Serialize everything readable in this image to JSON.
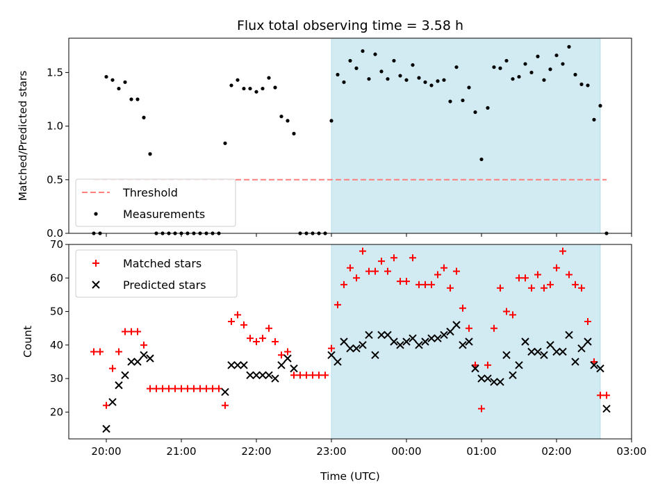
{
  "chart_data": {
    "type": "scatter",
    "title": "Flux total observing time = 3.58 h",
    "xlabel": "Time (UTC)",
    "x_ticks": [
      "20:00",
      "21:00",
      "22:00",
      "23:00",
      "00:00",
      "01:00",
      "02:00",
      "03:00"
    ],
    "x_range": [
      "19:30",
      "03:00"
    ],
    "shaded_interval": {
      "start": "23:00",
      "end": "02:35",
      "color": "#add8e6"
    },
    "panels": [
      {
        "ylabel": "Matched/Predicted stars",
        "ylim": [
          0,
          1.82
        ],
        "yticks": [
          "0.0",
          "0.5",
          "1.0",
          "1.5"
        ],
        "legend": {
          "position": "lower-left",
          "entries": [
            "Threshold",
            "Measurements"
          ]
        },
        "threshold": {
          "name": "Threshold",
          "value": 0.5,
          "x_start": "19:50",
          "x_end": "02:40",
          "color": "#ff7f7f"
        },
        "series": [
          {
            "name": "Measurements",
            "marker": "dot",
            "color": "#000000",
            "points": [
              [
                "19:50",
                0.0
              ],
              [
                "19:55",
                0.0
              ],
              [
                "20:00",
                1.46
              ],
              [
                "20:05",
                1.43
              ],
              [
                "20:10",
                1.35
              ],
              [
                "20:15",
                1.41
              ],
              [
                "20:20",
                1.25
              ],
              [
                "20:25",
                1.25
              ],
              [
                "20:30",
                1.08
              ],
              [
                "20:35",
                0.74
              ],
              [
                "20:40",
                0.0
              ],
              [
                "20:45",
                0.0
              ],
              [
                "20:50",
                0.0
              ],
              [
                "20:55",
                0.0
              ],
              [
                "21:00",
                0.0
              ],
              [
                "21:05",
                0.0
              ],
              [
                "21:10",
                0.0
              ],
              [
                "21:15",
                0.0
              ],
              [
                "21:20",
                0.0
              ],
              [
                "21:25",
                0.0
              ],
              [
                "21:30",
                0.0
              ],
              [
                "21:35",
                0.84
              ],
              [
                "21:40",
                1.38
              ],
              [
                "21:45",
                1.43
              ],
              [
                "21:50",
                1.35
              ],
              [
                "21:55",
                1.35
              ],
              [
                "22:00",
                1.32
              ],
              [
                "22:05",
                1.35
              ],
              [
                "22:10",
                1.45
              ],
              [
                "22:15",
                1.36
              ],
              [
                "22:20",
                1.09
              ],
              [
                "22:25",
                1.05
              ],
              [
                "22:30",
                0.93
              ],
              [
                "22:35",
                0.0
              ],
              [
                "22:40",
                0.0
              ],
              [
                "22:45",
                0.0
              ],
              [
                "22:50",
                0.0
              ],
              [
                "22:55",
                0.0
              ],
              [
                "23:00",
                1.05
              ],
              [
                "23:05",
                1.48
              ],
              [
                "23:10",
                1.41
              ],
              [
                "23:15",
                1.61
              ],
              [
                "23:20",
                1.54
              ],
              [
                "23:25",
                1.7
              ],
              [
                "23:30",
                1.44
              ],
              [
                "23:35",
                1.67
              ],
              [
                "23:40",
                1.51
              ],
              [
                "23:45",
                1.44
              ],
              [
                "23:50",
                1.61
              ],
              [
                "23:55",
                1.47
              ],
              [
                "00:00",
                1.43
              ],
              [
                "00:05",
                1.57
              ],
              [
                "00:10",
                1.45
              ],
              [
                "00:15",
                1.41
              ],
              [
                "00:20",
                1.38
              ],
              [
                "00:25",
                1.42
              ],
              [
                "00:30",
                1.43
              ],
              [
                "00:35",
                1.23
              ],
              [
                "00:40",
                1.55
              ],
              [
                "00:45",
                1.24
              ],
              [
                "00:50",
                1.36
              ],
              [
                "00:55",
                1.13
              ],
              [
                "01:00",
                0.69
              ],
              [
                "01:05",
                1.17
              ],
              [
                "01:10",
                1.55
              ],
              [
                "01:15",
                1.54
              ],
              [
                "01:20",
                1.61
              ],
              [
                "01:25",
                1.44
              ],
              [
                "01:30",
                1.46
              ],
              [
                "01:35",
                1.58
              ],
              [
                "01:40",
                1.5
              ],
              [
                "01:45",
                1.65
              ],
              [
                "01:50",
                1.43
              ],
              [
                "01:55",
                1.53
              ],
              [
                "02:00",
                1.66
              ],
              [
                "02:05",
                1.58
              ],
              [
                "02:10",
                1.74
              ],
              [
                "02:15",
                1.48
              ],
              [
                "02:20",
                1.39
              ],
              [
                "02:25",
                1.38
              ],
              [
                "02:30",
                1.06
              ],
              [
                "02:35",
                1.19
              ],
              [
                "02:40",
                0.0
              ]
            ]
          }
        ]
      },
      {
        "ylabel": "Count",
        "ylim": [
          12,
          70
        ],
        "yticks": [
          "20",
          "30",
          "40",
          "50",
          "60",
          "70"
        ],
        "legend": {
          "position": "upper-left",
          "entries": [
            "Matched stars",
            "Predicted stars"
          ]
        },
        "series": [
          {
            "name": "Matched stars",
            "marker": "plus",
            "color": "#ff0000",
            "points": [
              [
                "19:50",
                38
              ],
              [
                "19:55",
                38
              ],
              [
                "20:00",
                22
              ],
              [
                "20:05",
                33
              ],
              [
                "20:10",
                38
              ],
              [
                "20:15",
                44
              ],
              [
                "20:20",
                44
              ],
              [
                "20:25",
                44
              ],
              [
                "20:30",
                40
              ],
              [
                "20:35",
                27
              ],
              [
                "20:40",
                27
              ],
              [
                "20:45",
                27
              ],
              [
                "20:50",
                27
              ],
              [
                "20:55",
                27
              ],
              [
                "21:00",
                27
              ],
              [
                "21:05",
                27
              ],
              [
                "21:10",
                27
              ],
              [
                "21:15",
                27
              ],
              [
                "21:20",
                27
              ],
              [
                "21:25",
                27
              ],
              [
                "21:30",
                27
              ],
              [
                "21:35",
                22
              ],
              [
                "21:40",
                47
              ],
              [
                "21:45",
                49
              ],
              [
                "21:50",
                46
              ],
              [
                "21:55",
                42
              ],
              [
                "22:00",
                41
              ],
              [
                "22:05",
                42
              ],
              [
                "22:10",
                45
              ],
              [
                "22:15",
                41
              ],
              [
                "22:20",
                37
              ],
              [
                "22:25",
                38
              ],
              [
                "22:30",
                31
              ],
              [
                "22:35",
                31
              ],
              [
                "22:40",
                31
              ],
              [
                "22:45",
                31
              ],
              [
                "22:50",
                31
              ],
              [
                "22:55",
                31
              ],
              [
                "23:00",
                39
              ],
              [
                "23:05",
                52
              ],
              [
                "23:10",
                58
              ],
              [
                "23:15",
                63
              ],
              [
                "23:20",
                60
              ],
              [
                "23:25",
                68
              ],
              [
                "23:30",
                62
              ],
              [
                "23:35",
                62
              ],
              [
                "23:40",
                65
              ],
              [
                "23:45",
                62
              ],
              [
                "23:50",
                66
              ],
              [
                "23:55",
                59
              ],
              [
                "00:00",
                59
              ],
              [
                "00:05",
                66
              ],
              [
                "00:10",
                58
              ],
              [
                "00:15",
                58
              ],
              [
                "00:20",
                58
              ],
              [
                "00:25",
                61
              ],
              [
                "00:30",
                63
              ],
              [
                "00:35",
                57
              ],
              [
                "00:40",
                62
              ],
              [
                "00:45",
                51
              ],
              [
                "00:50",
                45
              ],
              [
                "00:55",
                34
              ],
              [
                "01:00",
                21
              ],
              [
                "01:05",
                34
              ],
              [
                "01:10",
                45
              ],
              [
                "01:15",
                57
              ],
              [
                "01:20",
                50
              ],
              [
                "01:25",
                49
              ],
              [
                "01:30",
                60
              ],
              [
                "01:35",
                60
              ],
              [
                "01:40",
                57
              ],
              [
                "01:45",
                61
              ],
              [
                "01:50",
                57
              ],
              [
                "01:55",
                58
              ],
              [
                "02:00",
                63
              ],
              [
                "02:05",
                68
              ],
              [
                "02:10",
                61
              ],
              [
                "02:15",
                58
              ],
              [
                "02:20",
                57
              ],
              [
                "02:25",
                47
              ],
              [
                "02:30",
                35
              ],
              [
                "02:35",
                25
              ],
              [
                "02:40",
                25
              ]
            ]
          },
          {
            "name": "Predicted stars",
            "marker": "x",
            "color": "#000000",
            "points": [
              [
                "20:00",
                15
              ],
              [
                "20:05",
                23
              ],
              [
                "20:10",
                28
              ],
              [
                "20:15",
                31
              ],
              [
                "20:20",
                35
              ],
              [
                "20:25",
                35
              ],
              [
                "20:30",
                37
              ],
              [
                "20:35",
                36
              ],
              [
                "21:35",
                26
              ],
              [
                "21:40",
                34
              ],
              [
                "21:45",
                34
              ],
              [
                "21:50",
                34
              ],
              [
                "21:55",
                31
              ],
              [
                "22:00",
                31
              ],
              [
                "22:05",
                31
              ],
              [
                "22:10",
                31
              ],
              [
                "22:15",
                30
              ],
              [
                "22:20",
                34
              ],
              [
                "22:25",
                36
              ],
              [
                "22:30",
                33
              ],
              [
                "23:00",
                37
              ],
              [
                "23:05",
                35
              ],
              [
                "23:10",
                41
              ],
              [
                "23:15",
                39
              ],
              [
                "23:20",
                39
              ],
              [
                "23:25",
                40
              ],
              [
                "23:30",
                43
              ],
              [
                "23:35",
                37
              ],
              [
                "23:40",
                43
              ],
              [
                "23:45",
                43
              ],
              [
                "23:50",
                41
              ],
              [
                "23:55",
                40
              ],
              [
                "00:00",
                41
              ],
              [
                "00:05",
                42
              ],
              [
                "00:10",
                40
              ],
              [
                "00:15",
                41
              ],
              [
                "00:20",
                42
              ],
              [
                "00:25",
                42
              ],
              [
                "00:30",
                43
              ],
              [
                "00:35",
                44
              ],
              [
                "00:40",
                46
              ],
              [
                "00:45",
                40
              ],
              [
                "00:50",
                41
              ],
              [
                "00:55",
                33
              ],
              [
                "01:00",
                30
              ],
              [
                "01:05",
                30
              ],
              [
                "01:10",
                29
              ],
              [
                "01:15",
                29
              ],
              [
                "01:20",
                37
              ],
              [
                "01:25",
                31
              ],
              [
                "01:30",
                34
              ],
              [
                "01:35",
                41
              ],
              [
                "01:40",
                38
              ],
              [
                "01:45",
                38
              ],
              [
                "01:50",
                37
              ],
              [
                "01:55",
                40
              ],
              [
                "02:00",
                38
              ],
              [
                "02:05",
                38
              ],
              [
                "02:10",
                43
              ],
              [
                "02:15",
                35
              ],
              [
                "02:20",
                39
              ],
              [
                "02:25",
                41
              ],
              [
                "02:30",
                34
              ],
              [
                "02:35",
                33
              ],
              [
                "02:40",
                21
              ]
            ]
          }
        ]
      }
    ]
  }
}
